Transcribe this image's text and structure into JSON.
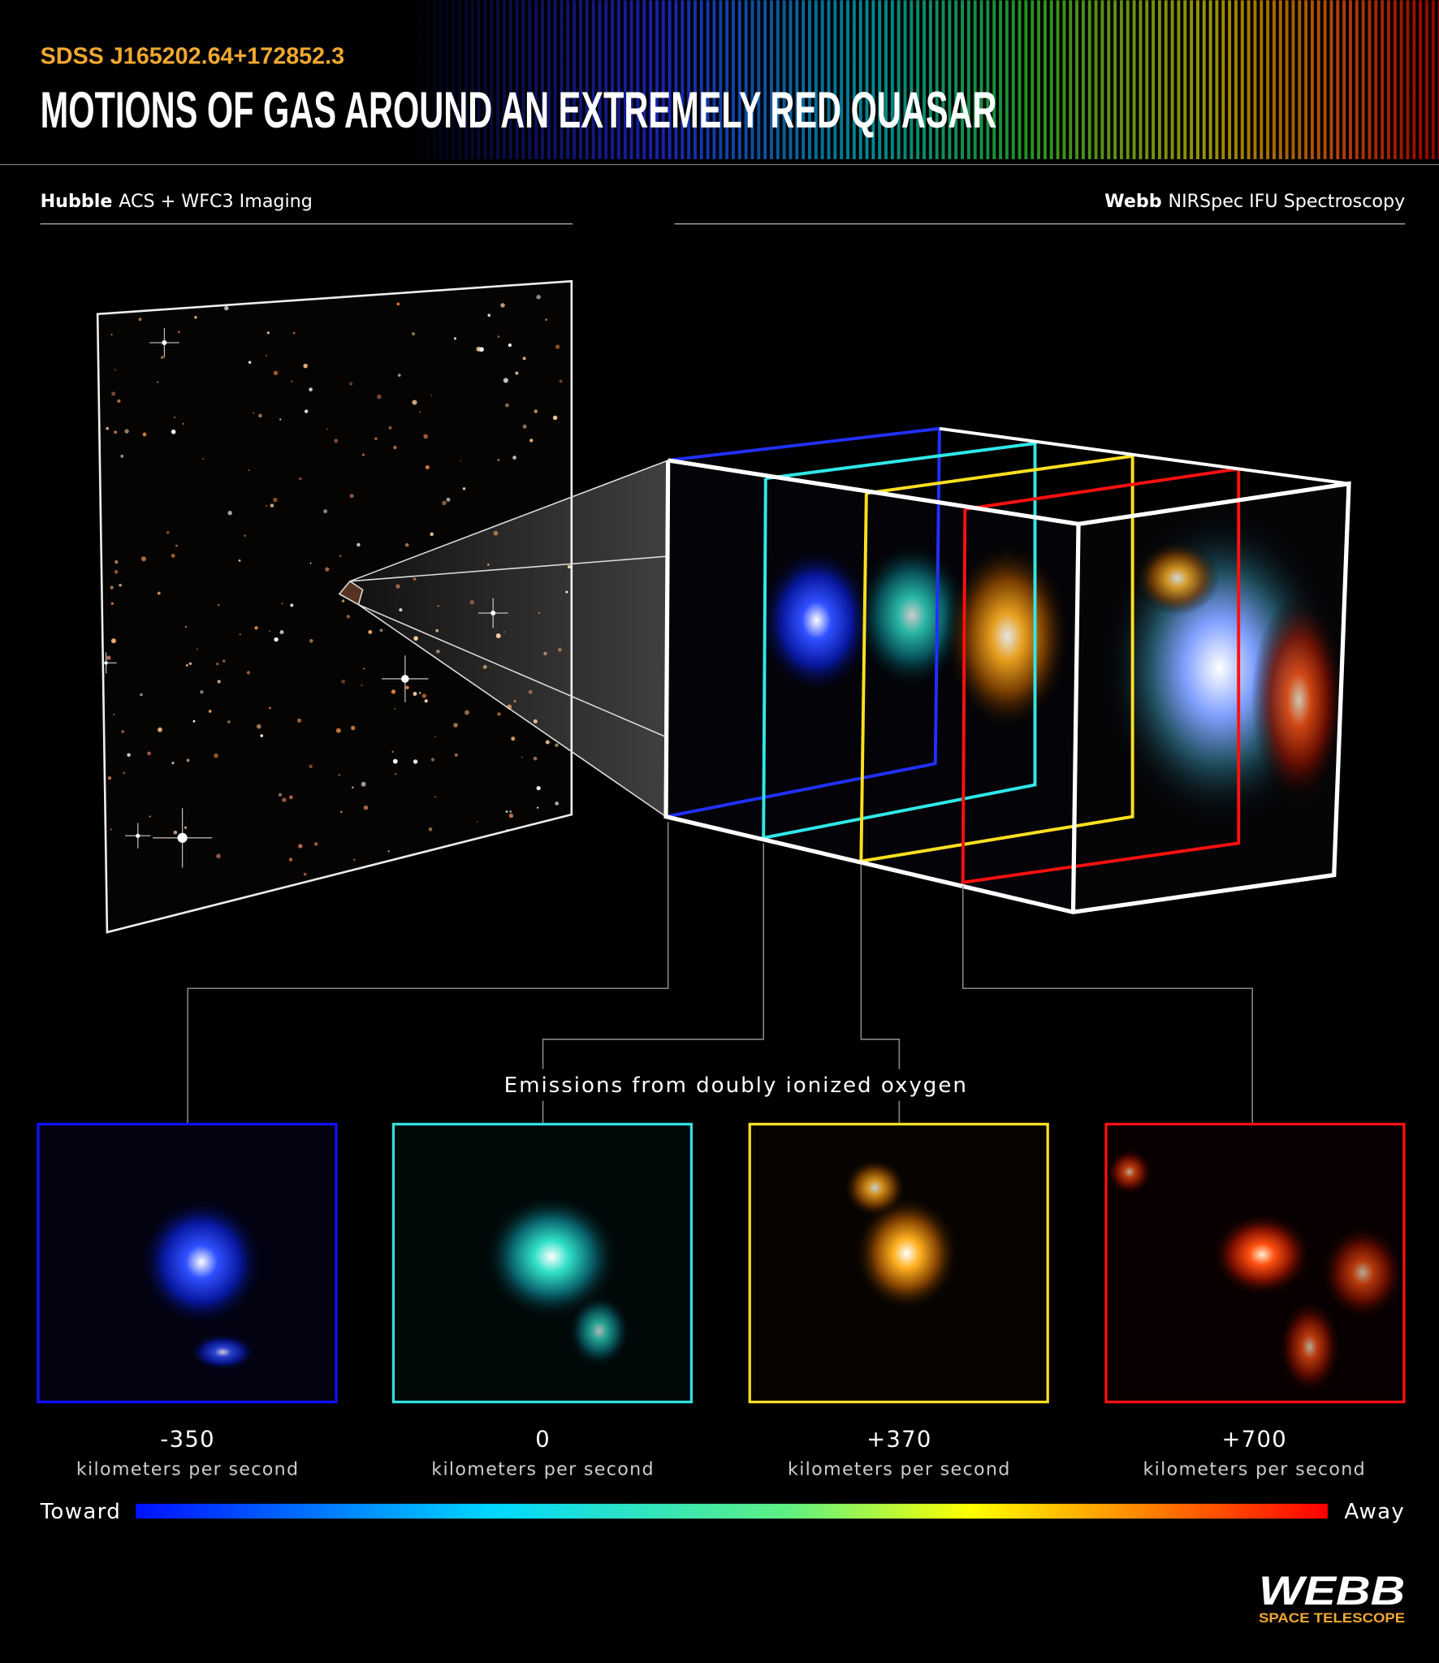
{
  "header": {
    "target": "SDSS J165202.64+172852.3",
    "title": "MOTIONS OF GAS AROUND AN EXTREMELY RED QUASAR"
  },
  "sections": {
    "left": {
      "instrument": "Hubble",
      "detail": "ACS + WFC3 Imaging"
    },
    "right": {
      "instrument": "Webb",
      "detail": "NIRSpec IFU Spectroscopy"
    }
  },
  "caption": "Emissions from doubly ionized oxygen",
  "panels": [
    {
      "velocity": "-350",
      "unit": "kilometers per second"
    },
    {
      "velocity": "0",
      "unit": "kilometers per second"
    },
    {
      "velocity": "+370",
      "unit": "kilometers per second"
    },
    {
      "velocity": "+700",
      "unit": "kilometers per second"
    }
  ],
  "scale": {
    "start": "Toward",
    "end": "Away"
  },
  "logo": {
    "name": "WEBB",
    "tagline": "SPACE TELESCOPE"
  }
}
